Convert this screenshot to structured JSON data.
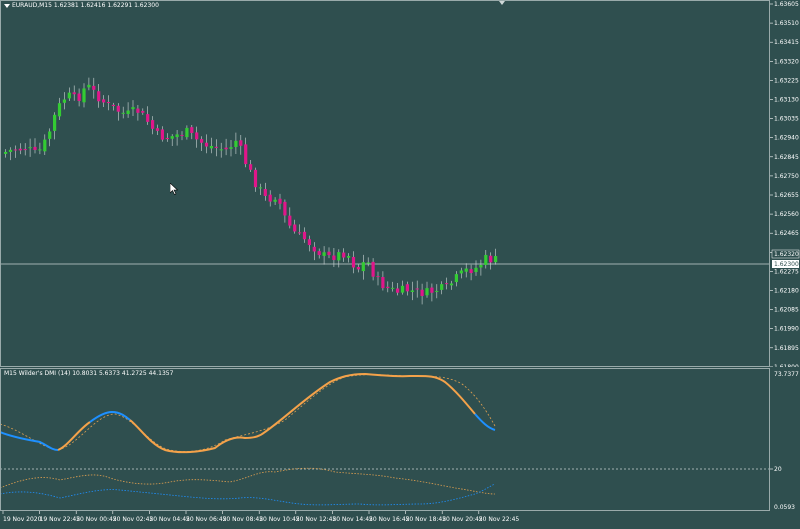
{
  "main": {
    "symbol": "EURAUD,M15",
    "open": "1.62381",
    "high": "1.62416",
    "low": "1.62291",
    "close": "1.62300",
    "price_scale": [
      "1.63605",
      "1.63510",
      "1.63415",
      "1.63320",
      "1.63225",
      "1.63130",
      "1.63035",
      "1.62940",
      "1.62845",
      "1.62750",
      "1.62655",
      "1.62560",
      "1.62465",
      "1.62370",
      "1.62275",
      "1.62180",
      "1.62085",
      "1.61990",
      "1.61895",
      "1.61800"
    ],
    "current_price": "1.62300",
    "ask_price": "1.62320"
  },
  "indicator": {
    "title": "M15 Wilder's DMI (14)",
    "v1": "10.8031",
    "v2": "5.6373",
    "v3": "41.2725",
    "v4": "44.1357",
    "scale_top": "73.7377",
    "level": "20",
    "scale_bottom": "0.0593"
  },
  "time_axis": [
    "19 Nov 2020",
    "19 Nov 22:45",
    "20 Nov 00:45",
    "20 Nov 02:45",
    "20 Nov 04:45",
    "20 Nov 06:45",
    "20 Nov 08:45",
    "20 Nov 10:45",
    "20 Nov 12:45",
    "20 Nov 14:45",
    "20 Nov 16:45",
    "20 Nov 18:45",
    "20 Nov 20:45",
    "20 Nov 22:45"
  ],
  "colors": {
    "background": "#2f4f4f",
    "bull": "#33cc33",
    "bear": "#e0168a",
    "adx": "#1e90ff",
    "adx_up": "#f4a24a",
    "grid": "#9aa8a8"
  },
  "icons": {
    "cursor": "arrow-cursor-icon",
    "menu": "dropdown-triangle-icon"
  }
}
